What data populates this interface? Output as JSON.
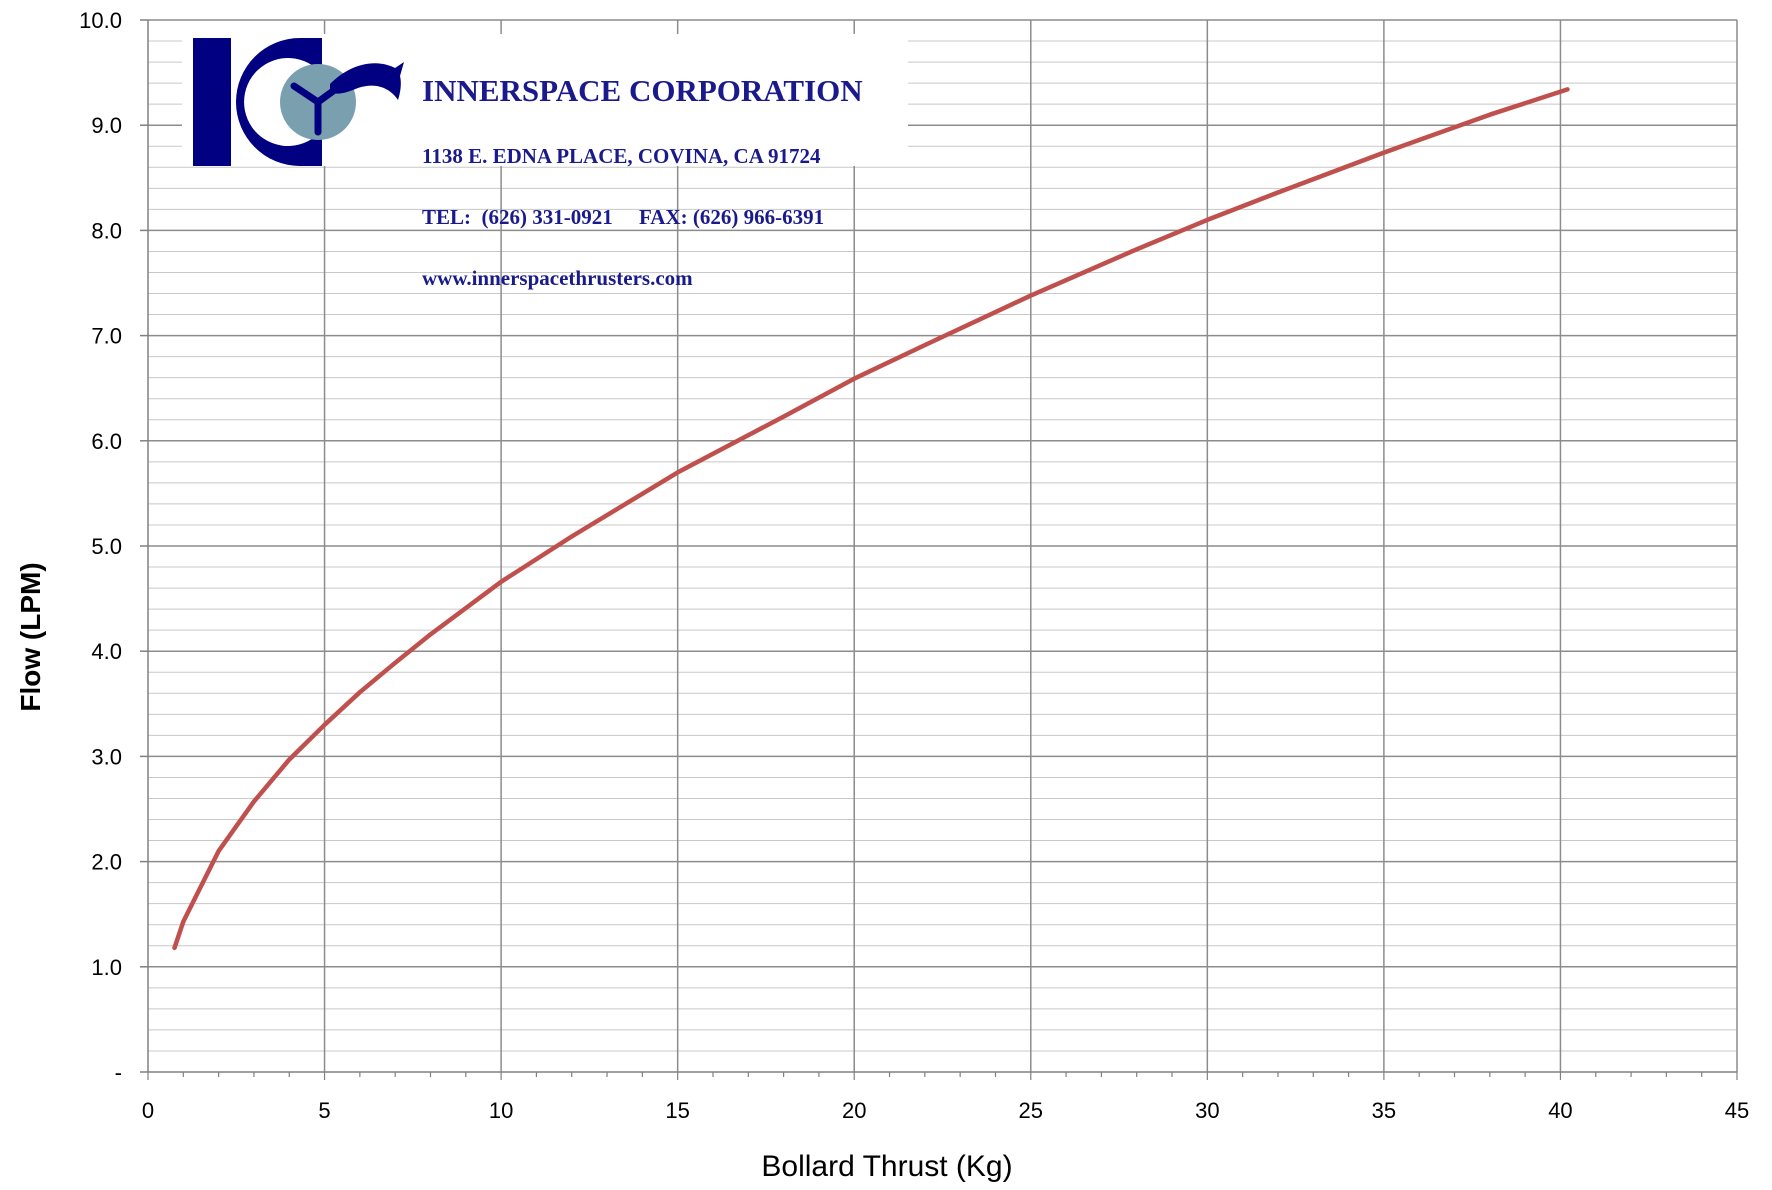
{
  "chart_data": {
    "type": "line",
    "xlabel": "Bollard Thrust (Kg)",
    "ylabel": "Flow (LPM)",
    "xlim": [
      0,
      45
    ],
    "ylim": [
      0,
      10
    ],
    "xticks": [
      "0",
      "5",
      "10",
      "15",
      "20",
      "25",
      "30",
      "35",
      "40",
      "45"
    ],
    "yticks": [
      "-",
      "1.0",
      "2.0",
      "3.0",
      "4.0",
      "5.0",
      "6.0",
      "7.0",
      "8.0",
      "9.0",
      "10.0"
    ],
    "grid": true,
    "series": [
      {
        "color": "#c0504d",
        "x": [
          0.75,
          1,
          2,
          3,
          4,
          5,
          6,
          7,
          8,
          10,
          12,
          15,
          18,
          20,
          22,
          25,
          28,
          30,
          32,
          35,
          38,
          40.2
        ],
        "y": [
          1.18,
          1.43,
          2.1,
          2.57,
          2.97,
          3.3,
          3.61,
          3.89,
          4.16,
          4.66,
          5.09,
          5.7,
          6.23,
          6.59,
          6.91,
          7.38,
          7.82,
          8.1,
          8.36,
          8.74,
          9.1,
          9.34
        ]
      }
    ]
  },
  "logo": {
    "company": "INNERSPACE CORPORATION",
    "address": "1138 E. EDNA PLACE, COVINA, CA 91724",
    "contact": "TEL:  (626) 331-0921     FAX: (626) 966-6391",
    "website": "www.innerspacethrusters.com",
    "emblem_lettering": "IC",
    "brand_color": "#000080",
    "text_color": "#1a1a8c"
  }
}
